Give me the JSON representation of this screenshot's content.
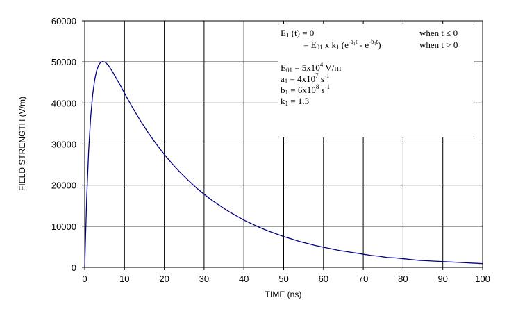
{
  "chart_data": {
    "type": "line",
    "title": "",
    "xlabel": "TIME (ns)",
    "ylabel": "FIELD STRENGTH (V/m)",
    "xlim": [
      0,
      100
    ],
    "ylim": [
      0,
      60000
    ],
    "xticks": [
      "0",
      "10",
      "20",
      "30",
      "40",
      "50",
      "60",
      "70",
      "80",
      "90",
      "100"
    ],
    "yticks": [
      "0",
      "10000",
      "20000",
      "30000",
      "40000",
      "50000",
      "60000"
    ],
    "grid": true,
    "line_color": "#000080",
    "series": [
      {
        "x": [
          0,
          0.5,
          1,
          1.5,
          2,
          2.5,
          3,
          3.5,
          4,
          4.5,
          5,
          5.5,
          6,
          7,
          8,
          9,
          10,
          12,
          14,
          16,
          18,
          20,
          22,
          24,
          26,
          28,
          30,
          32,
          34,
          36,
          38,
          40,
          42,
          44,
          46,
          48,
          50,
          52,
          54,
          56,
          58,
          60,
          62,
          64,
          66,
          68,
          70,
          72,
          74,
          76,
          78,
          80,
          82,
          84,
          86,
          88,
          90,
          92,
          94,
          96,
          98,
          100
        ],
        "y": [
          0,
          16800,
          28500,
          36600,
          42000,
          45600,
          47900,
          49200,
          49900,
          50100,
          50000,
          49600,
          49100,
          47600,
          45900,
          44200,
          42400,
          38900,
          35700,
          32700,
          30000,
          27500,
          25200,
          23100,
          21200,
          19400,
          17800,
          16300,
          15000,
          13700,
          12600,
          11500,
          10600,
          9700,
          8900,
          8200,
          7500,
          6900,
          6300,
          5800,
          5300,
          4900,
          4500,
          4100,
          3800,
          3500,
          3200,
          2900,
          2700,
          2400,
          2300,
          2100,
          1900,
          1700,
          1600,
          1500,
          1400,
          1300,
          1200,
          1100,
          1000,
          900
        ]
      }
    ]
  },
  "formula": {
    "l1_a": "E",
    "l1_a_sub": "1",
    "l1_b": " (t) = 0",
    "l1_cond": "when t ≤ 0",
    "l2_a": "= E",
    "l2_a_sub": "01",
    "l2_b": " x k",
    "l2_b_sub": "1",
    "l2_c": " (e",
    "l2_exp1": "-a₁t",
    "l2_d": " - e",
    "l2_exp2": "-b₁t",
    "l2_e": ")",
    "l2_cond": "when t > 0",
    "p1_a": "E",
    "p1_sub": "01",
    "p1_b": " =  5x10",
    "p1_exp": "4",
    "p1_c": " V/m",
    "p2_a": "a",
    "p2_sub": "1",
    "p2_b": " = 4x10",
    "p2_exp": "7",
    "p2_c": " s",
    "p2_unit_exp": "-1",
    "p3_a": "b",
    "p3_sub": "1",
    "p3_b": " = 6x10",
    "p3_exp": "8",
    "p3_c": " s",
    "p3_unit_exp": "-1",
    "p4_a": "k",
    "p4_sub": "1",
    "p4_b": " = 1.3"
  }
}
